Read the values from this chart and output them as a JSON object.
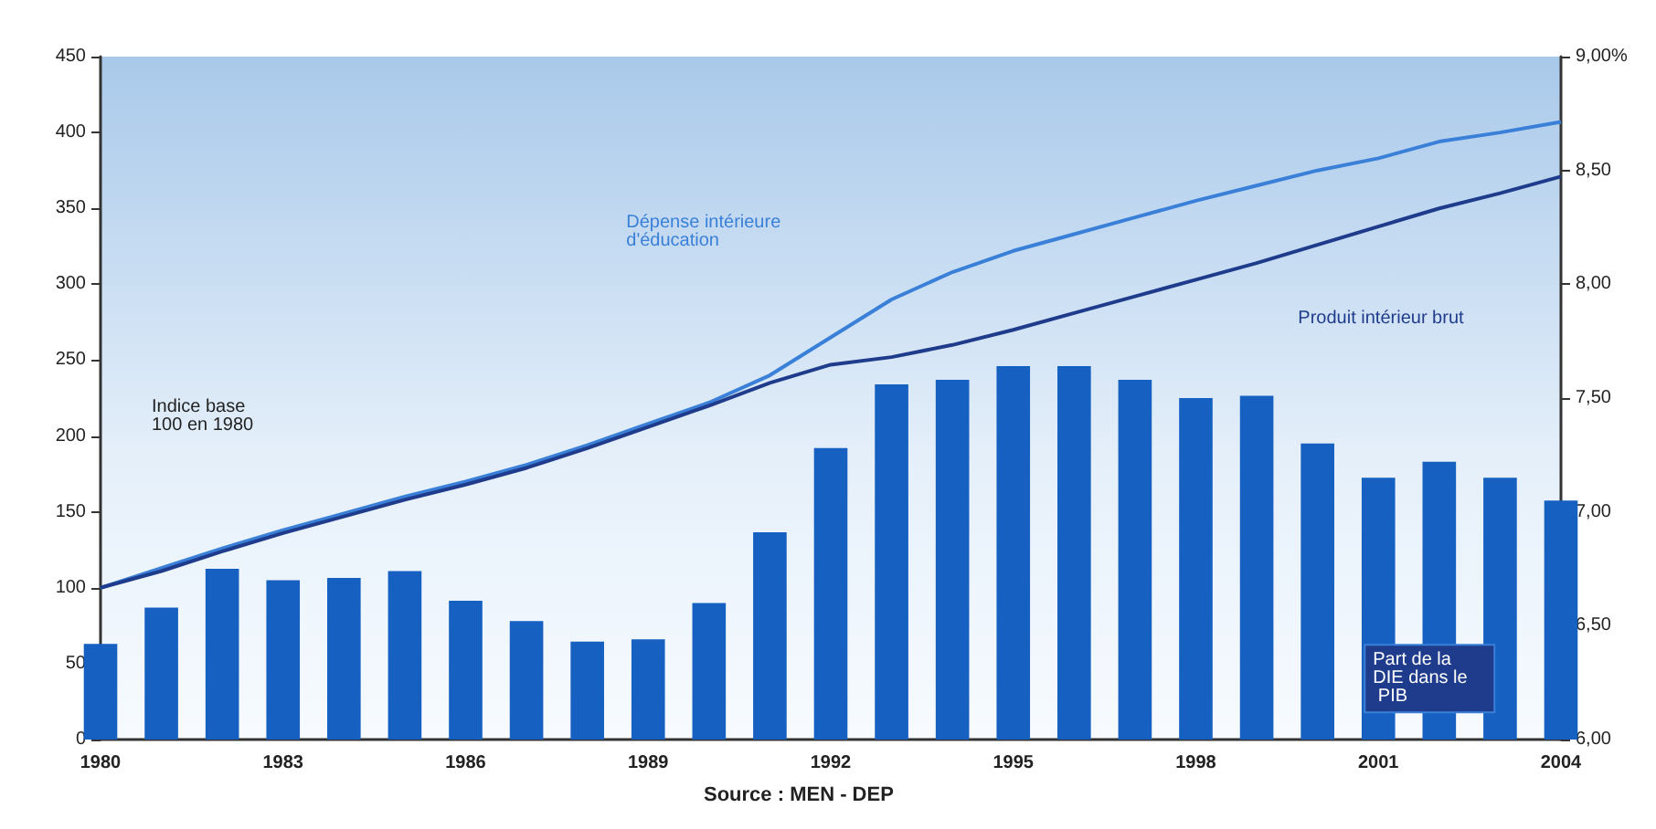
{
  "chart_data": {
    "type": "bar",
    "categories": [
      "1980",
      null,
      null,
      "1983",
      null,
      null,
      "1986",
      null,
      null,
      "1989",
      null,
      null,
      "1992",
      null,
      null,
      "1995",
      null,
      null,
      "1998",
      null,
      null,
      "2001",
      null,
      null,
      "2004"
    ],
    "series": [
      {
        "name": "Part de la DIE dans le PIB",
        "axis": "y2",
        "color": "#1560c0",
        "values": [
          6.42,
          6.58,
          6.75,
          6.7,
          6.71,
          6.74,
          6.61,
          6.52,
          6.43,
          6.44,
          6.6,
          6.91,
          7.28,
          7.56,
          7.58,
          7.64,
          7.64,
          7.58,
          7.5,
          7.51,
          7.3,
          7.15,
          7.22,
          7.15,
          7.05
        ]
      },
      {
        "name": "Dépense intérieure d'éducation",
        "type": "line",
        "color": "#3a80d8",
        "values": [
          100,
          113,
          126,
          138,
          149,
          160,
          170,
          181,
          194,
          208,
          222,
          240,
          265,
          290,
          308,
          322,
          333,
          344,
          355,
          365,
          375,
          383,
          394,
          400,
          407
        ]
      },
      {
        "name": "Produit intérieur brut",
        "type": "line",
        "color": "#1f3c8c",
        "values": [
          100,
          111,
          124,
          136,
          147,
          158,
          168,
          179,
          192,
          206,
          220,
          235,
          247,
          252,
          260,
          270,
          281,
          292,
          303,
          314,
          326,
          338,
          350,
          360,
          371
        ]
      }
    ],
    "ylim": [
      0,
      450
    ],
    "yticks": [
      0,
      50,
      100,
      150,
      200,
      250,
      300,
      350,
      400,
      450
    ],
    "y2lim": [
      6,
      9
    ],
    "y2ticks": [
      {
        "value": 6,
        "label": "6,00"
      },
      {
        "value": 6.5,
        "label": "6,50"
      },
      {
        "value": 7,
        "label": "7,00"
      },
      {
        "value": 7.5,
        "label": "7,50"
      },
      {
        "value": 8,
        "label": "8,00"
      },
      {
        "value": 8.5,
        "label": "8,50"
      },
      {
        "value": 9,
        "label": "9,00%"
      }
    ],
    "annotations": [
      "Indice base 100 en 1980",
      "Source : MEN - DEP"
    ],
    "grid": false,
    "legend": false,
    "marker": "none",
    "line_style": "solid"
  }
}
